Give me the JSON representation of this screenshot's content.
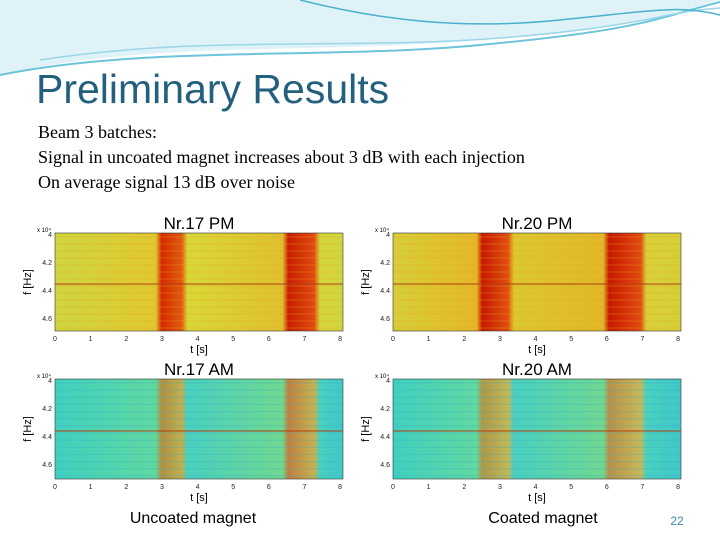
{
  "slide": {
    "title": "Preliminary Results",
    "bullets": [
      "Beam 3 batches:",
      "Signal in uncoated magnet increases about 3 dB with each injection",
      "On average signal 13 dB over noise"
    ],
    "page_number": "22"
  },
  "panels": [
    {
      "title": "Nr.17 PM",
      "x_label": "t [s]",
      "y_label": "f [Hz]",
      "y_exponent": "x 10⁴",
      "xticks": [
        "0",
        "1",
        "2",
        "3",
        "4",
        "5",
        "6",
        "7",
        "8"
      ],
      "yticks": [
        "4",
        "4.2",
        "4.4",
        "4.6"
      ]
    },
    {
      "title": "Nr.20 PM",
      "x_label": "t [s]",
      "y_label": "f [Hz]",
      "y_exponent": "x 10⁴",
      "xticks": [
        "0",
        "1",
        "2",
        "3",
        "4",
        "5",
        "6",
        "7",
        "8"
      ],
      "yticks": [
        "4",
        "4.2",
        "4.4",
        "4.6"
      ]
    },
    {
      "title": "Nr.17 AM",
      "x_label": "t [s]",
      "y_label": "f [Hz]",
      "y_exponent": "x 10⁴",
      "xticks": [
        "0",
        "1",
        "2",
        "3",
        "4",
        "5",
        "6",
        "7",
        "8"
      ],
      "yticks": [
        "4",
        "4.2",
        "4.4",
        "4.6"
      ]
    },
    {
      "title": "Nr.20 AM",
      "x_label": "t [s]",
      "y_label": "f [Hz]",
      "y_exponent": "x 10⁴",
      "xticks": [
        "0",
        "1",
        "2",
        "3",
        "4",
        "5",
        "6",
        "7",
        "8"
      ],
      "yticks": [
        "4",
        "4.2",
        "4.4",
        "4.6"
      ]
    }
  ],
  "captions": [
    "Uncoated magnet",
    "Coated magnet"
  ]
}
